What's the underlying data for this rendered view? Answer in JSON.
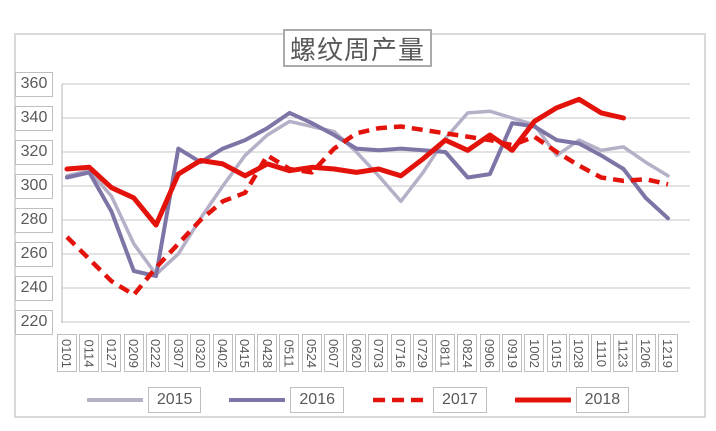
{
  "title": "螺纹周产量",
  "colors": {
    "frame": "#d9d9d9",
    "gridline": "#d9d9d9",
    "axis_line": "#c0c0c0",
    "tick_box_border": "#bfbfbf",
    "text": "#595959",
    "series_2015": "#b5b0c7",
    "series_2016": "#7e74a6",
    "series_2017": "#e3120b",
    "series_2018": "#e3120b"
  },
  "chart_data": {
    "type": "line",
    "title": "螺纹周产量",
    "categories": [
      "0101",
      "0114",
      "0127",
      "0209",
      "0222",
      "0307",
      "0320",
      "0402",
      "0415",
      "0428",
      "0511",
      "0524",
      "0607",
      "0620",
      "0703",
      "0716",
      "0729",
      "0811",
      "0824",
      "0906",
      "0919",
      "1002",
      "1015",
      "1028",
      "1110",
      "1123",
      "1206",
      "1219"
    ],
    "series": [
      {
        "name": "2015",
        "color": "#b5b0c7",
        "style": "solid",
        "width": 3.5,
        "values": [
          306,
          309,
          294,
          266,
          248,
          260,
          281,
          300,
          318,
          330,
          338,
          335,
          332,
          320,
          306,
          291,
          308,
          328,
          343,
          344,
          340,
          336,
          318,
          327,
          321,
          323,
          314,
          306
        ]
      },
      {
        "name": "2016",
        "color": "#7e74a6",
        "style": "solid",
        "width": 4,
        "values": [
          305,
          308,
          285,
          250,
          247,
          322,
          314,
          322,
          327,
          334,
          343,
          337,
          330,
          322,
          321,
          322,
          321,
          320,
          305,
          307,
          337,
          335,
          327,
          325,
          318,
          310,
          293,
          281
        ]
      },
      {
        "name": "2017",
        "color": "#e3120b",
        "style": "dashed",
        "width": 4.5,
        "values": [
          270,
          257,
          244,
          236,
          252,
          266,
          280,
          291,
          296,
          318,
          310,
          308,
          322,
          331,
          334,
          335,
          333,
          331,
          329,
          327,
          324,
          329,
          320,
          312,
          305,
          303,
          304,
          301
        ]
      },
      {
        "name": "2018",
        "color": "#e3120b",
        "style": "solid",
        "width": 5,
        "values": [
          310,
          311,
          299,
          293,
          277,
          307,
          315,
          313,
          306,
          313,
          309,
          311,
          310,
          308,
          310,
          306,
          316,
          327,
          321,
          330,
          321,
          338,
          346,
          351,
          343,
          340,
          null,
          null
        ]
      }
    ],
    "ylim": [
      220,
      360
    ],
    "yticks": [
      360,
      340,
      320,
      300,
      280,
      260,
      240,
      220
    ],
    "grid": "horizontal",
    "legend_position": "bottom",
    "x_label_rotation": 90
  }
}
